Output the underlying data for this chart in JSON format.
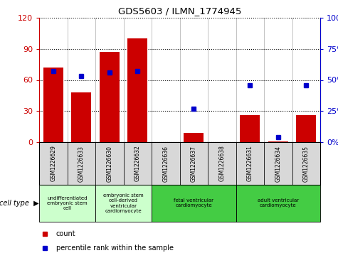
{
  "title": "GDS5603 / ILMN_1774945",
  "samples": [
    "GSM1226629",
    "GSM1226633",
    "GSM1226630",
    "GSM1226632",
    "GSM1226636",
    "GSM1226637",
    "GSM1226638",
    "GSM1226631",
    "GSM1226634",
    "GSM1226635"
  ],
  "counts": [
    72,
    48,
    87,
    100,
    0,
    9,
    0,
    26,
    1,
    26
  ],
  "percentiles": [
    57,
    53,
    56,
    57,
    null,
    27,
    null,
    46,
    4,
    46
  ],
  "ylim_left": [
    0,
    120
  ],
  "ylim_right": [
    0,
    100
  ],
  "yticks_left": [
    0,
    30,
    60,
    90,
    120
  ],
  "yticks_right": [
    0,
    25,
    50,
    75,
    100
  ],
  "ytick_labels_left": [
    "0",
    "30",
    "60",
    "90",
    "120"
  ],
  "ytick_labels_right": [
    "0%",
    "25%",
    "50%",
    "75%",
    "100%"
  ],
  "bar_color": "#cc0000",
  "dot_color": "#0000cc",
  "cell_types": [
    {
      "label": "undifferentiated\nembryonic stem\ncell",
      "span": [
        0,
        2
      ],
      "color": "#ccffcc"
    },
    {
      "label": "embryonic stem\ncell-derived\nventricular\ncardiomyocyte",
      "span": [
        2,
        4
      ],
      "color": "#ccffcc"
    },
    {
      "label": "fetal ventricular\ncardiomyocyte",
      "span": [
        4,
        7
      ],
      "color": "#44cc44"
    },
    {
      "label": "adult ventricular\ncardiomyocyte",
      "span": [
        7,
        10
      ],
      "color": "#44cc44"
    }
  ],
  "bg_color": "#d8d8d8",
  "plot_bg": "#ffffff",
  "left_tick_color": "#cc0000",
  "right_tick_color": "#0000cc",
  "legend_bar_color": "#cc0000",
  "legend_dot_color": "#0000cc"
}
